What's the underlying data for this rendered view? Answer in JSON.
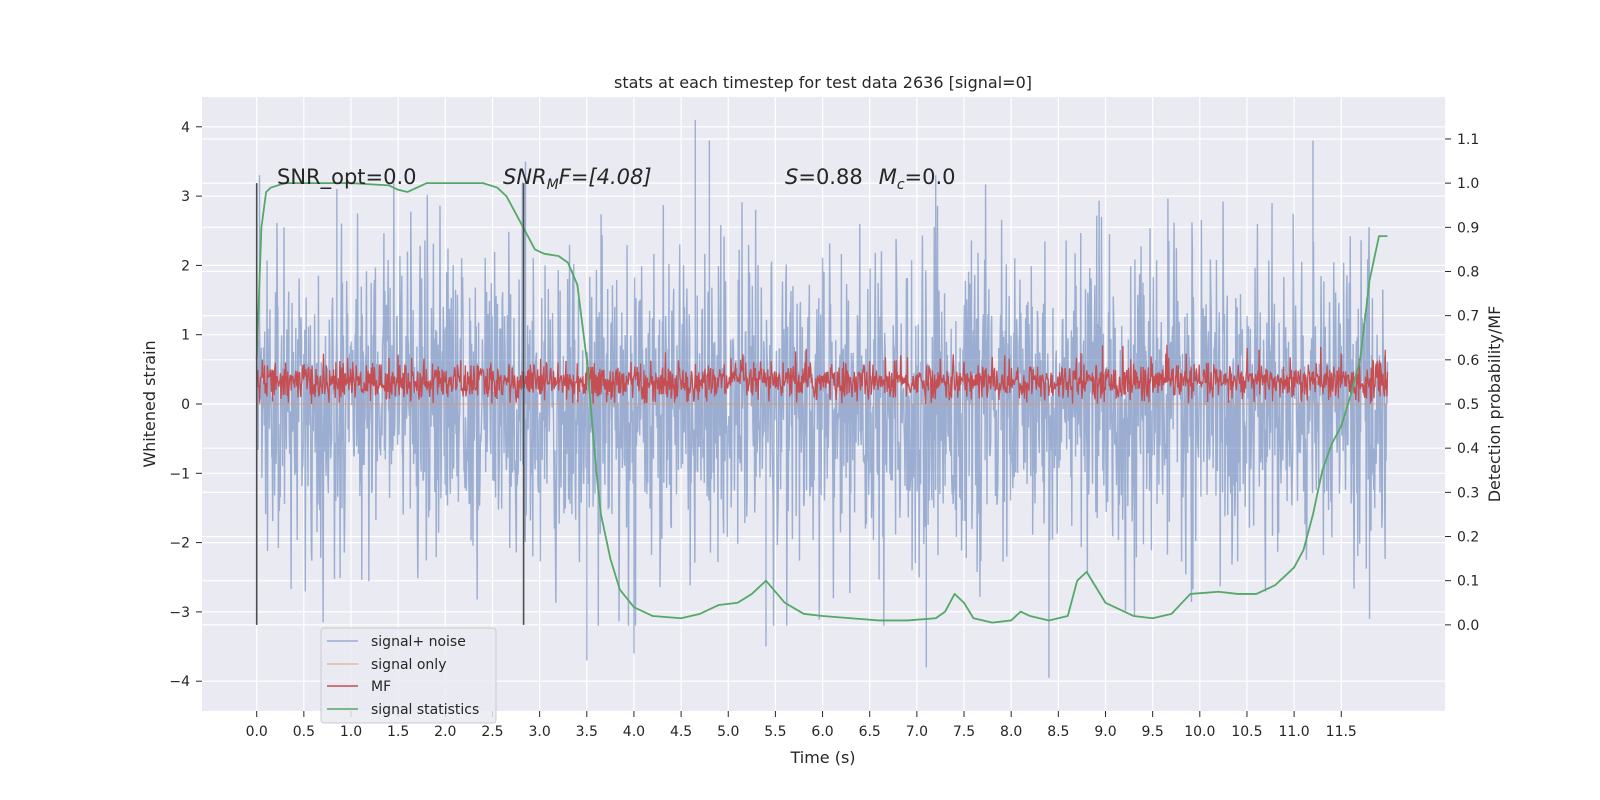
{
  "chart_data": {
    "type": "line",
    "title": "stats at each timestep for test data 2636 [signal=0]",
    "xlabel": "Time (s)",
    "ylabel": "Whitened strain",
    "y2label": "Detection probability/MF",
    "xlim": [
      -0.58,
      12.6
    ],
    "ylim": [
      -4.43,
      4.43
    ],
    "y2lim": [
      -0.195,
      1.195
    ],
    "x_ticks": [
      0.0,
      0.5,
      1.0,
      1.5,
      2.0,
      2.5,
      3.0,
      3.5,
      4.0,
      4.5,
      5.0,
      5.5,
      6.0,
      6.5,
      7.0,
      7.5,
      8.0,
      8.5,
      9.0,
      9.5,
      10.0,
      10.5,
      11.0,
      11.5
    ],
    "x_tick_labels": [
      "0.0",
      "0.5",
      "1.0",
      "1.5",
      "2.0",
      "2.5",
      "3.0",
      "3.5",
      "4.0",
      "4.5",
      "5.0",
      "5.5",
      "6.0",
      "6.5",
      "7.0",
      "7.5",
      "8.0",
      "8.5",
      "9.0",
      "9.5",
      "10.0",
      "10.5",
      "11.0",
      "11.5"
    ],
    "y_ticks": [
      -4,
      -3,
      -2,
      -1,
      0,
      1,
      2,
      3,
      4
    ],
    "y_tick_labels": [
      "−4",
      "−3",
      "−2",
      "−1",
      "0",
      "1",
      "2",
      "3",
      "4"
    ],
    "y2_ticks": [
      0.0,
      0.1,
      0.2,
      0.3,
      0.4,
      0.5,
      0.6,
      0.7,
      0.8,
      0.9,
      1.0,
      1.1
    ],
    "y2_tick_labels": [
      "0.0",
      "0.1",
      "0.2",
      "0.3",
      "0.4",
      "0.5",
      "0.6",
      "0.7",
      "0.8",
      "0.9",
      "1.0",
      "1.1"
    ],
    "grid": true,
    "legend_position": "lower-left",
    "annotations": {
      "snr_opt": "SNR_opt=0.0",
      "snr_mf_sym": "SNR",
      "snr_mf_sub": "M",
      "snr_mf_rest": "F=[4.08]",
      "s_sym": "S",
      "s_rest": "=0.88",
      "mc_sym": "M",
      "mc_sub": "c",
      "mc_rest": "=0.0"
    },
    "vlines": [
      0.0,
      2.83
    ],
    "series": [
      {
        "name": "signal+ noise",
        "color": "#4c72b0",
        "axis": "left",
        "t_range": [
          0.0,
          11.99
        ],
        "envelope": {
          "core": [
            -1.3,
            1.3
          ],
          "typical": [
            -2.0,
            2.0
          ],
          "max": [
            -3.7,
            4.1
          ]
        },
        "peaks": [
          {
            "x": 0.03,
            "y": 3.3
          },
          {
            "x": 0.85,
            "y": 3.1
          },
          {
            "x": 2.85,
            "y": 3.5
          },
          {
            "x": 4.65,
            "y": 4.1
          },
          {
            "x": 4.8,
            "y": 3.8
          },
          {
            "x": 7.2,
            "y": 3.3
          },
          {
            "x": 11.2,
            "y": 3.8
          },
          {
            "x": 3.5,
            "y": -3.7
          },
          {
            "x": 4.0,
            "y": -3.6
          },
          {
            "x": 5.4,
            "y": -3.5
          },
          {
            "x": 7.1,
            "y": -3.8
          },
          {
            "x": 8.4,
            "y": -3.95
          },
          {
            "x": 11.8,
            "y": -3.1
          }
        ]
      },
      {
        "name": "signal only",
        "color": "#dd8452",
        "axis": "left",
        "note_values": "zero signal",
        "value": 0.0
      },
      {
        "name": "MF",
        "color": "#c44e52",
        "axis": "left",
        "t_range": [
          0.0,
          11.99
        ],
        "envelope": {
          "min": 0.0,
          "typical": [
            0.1,
            0.55
          ],
          "max": 0.95
        }
      },
      {
        "name": "signal statistics",
        "color": "#55a868",
        "axis": "right",
        "x": [
          0.0,
          0.05,
          0.1,
          0.15,
          0.3,
          0.6,
          1.0,
          1.4,
          1.5,
          1.6,
          1.7,
          1.8,
          2.0,
          2.4,
          2.55,
          2.65,
          2.75,
          2.85,
          2.95,
          3.05,
          3.2,
          3.3,
          3.4,
          3.5,
          3.6,
          3.65,
          3.75,
          3.85,
          4.0,
          4.2,
          4.5,
          4.7,
          4.9,
          5.1,
          5.25,
          5.4,
          5.6,
          5.8,
          6.0,
          6.3,
          6.6,
          6.9,
          7.2,
          7.3,
          7.4,
          7.5,
          7.6,
          7.8,
          8.0,
          8.1,
          8.2,
          8.4,
          8.6,
          8.7,
          8.8,
          9.0,
          9.3,
          9.5,
          9.7,
          9.9,
          10.2,
          10.4,
          10.6,
          10.8,
          11.0,
          11.1,
          11.2,
          11.3,
          11.4,
          11.5,
          11.6,
          11.7,
          11.8,
          11.9,
          11.99
        ],
        "values": [
          0.6,
          0.9,
          0.98,
          0.99,
          1.0,
          1.0,
          1.0,
          0.995,
          0.985,
          0.98,
          0.99,
          1.0,
          1.0,
          1.0,
          0.99,
          0.97,
          0.93,
          0.89,
          0.85,
          0.84,
          0.835,
          0.82,
          0.77,
          0.6,
          0.35,
          0.25,
          0.15,
          0.08,
          0.04,
          0.02,
          0.015,
          0.025,
          0.045,
          0.05,
          0.07,
          0.1,
          0.05,
          0.025,
          0.02,
          0.015,
          0.01,
          0.01,
          0.015,
          0.03,
          0.07,
          0.05,
          0.015,
          0.005,
          0.01,
          0.03,
          0.02,
          0.01,
          0.02,
          0.1,
          0.12,
          0.05,
          0.02,
          0.015,
          0.025,
          0.07,
          0.075,
          0.07,
          0.07,
          0.09,
          0.13,
          0.17,
          0.25,
          0.35,
          0.41,
          0.45,
          0.52,
          0.6,
          0.78,
          0.88,
          0.88
        ]
      }
    ]
  }
}
